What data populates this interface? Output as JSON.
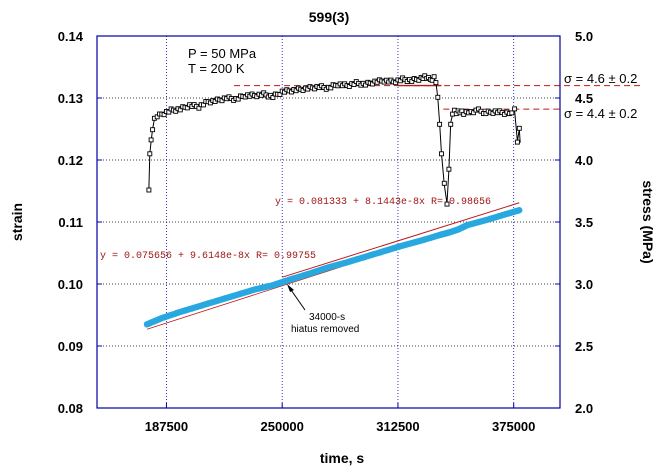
{
  "chart_data": {
    "type": "scatter",
    "title": "599(3)",
    "xlabel": "time, s",
    "ylabel_left": "strain",
    "ylabel_right": "stress (MPa)",
    "xlim": [
      150000,
      400000
    ],
    "ylim_left": [
      0.08,
      0.14
    ],
    "ylim_right": [
      2.0,
      5.0
    ],
    "x_ticks": [
      "187500",
      "250000",
      "312500",
      "375000"
    ],
    "x_tick_values": [
      187500,
      250000,
      312500,
      375000
    ],
    "y_left_ticks": [
      "0.08",
      "0.09",
      "0.10",
      "0.11",
      "0.12",
      "0.13",
      "0.14"
    ],
    "y_right_ticks": [
      "2.0",
      "2.5",
      "3.0",
      "3.5",
      "4.0",
      "4.5",
      "5.0"
    ],
    "grid": "dotted blue",
    "conditions": [
      "P = 50 MPa",
      "T = 200 K"
    ],
    "series": [
      {
        "axis": "right",
        "marker": "open-square",
        "color": "#000000",
        "x": [
          178000,
          178500,
          179200,
          180000,
          181000,
          182500,
          185000,
          190000,
          195000,
          200000,
          205000,
          210000,
          215000,
          220000,
          225000,
          230000,
          235000,
          240000,
          245000,
          250000,
          255000,
          260000,
          265000,
          270000,
          275000,
          280000,
          285000,
          290000,
          295000,
          300000,
          305000,
          310000,
          315000,
          320000,
          325000,
          328000,
          330000,
          332000,
          333000,
          334000,
          335000,
          336000,
          337500,
          339000,
          340000,
          341000,
          342000,
          343000,
          344000,
          345000,
          348000,
          352000,
          356000,
          360000,
          365000,
          370000,
          374000,
          375500,
          377000,
          378000,
          378500
        ],
        "y": [
          3.77,
          4.05,
          4.15,
          4.25,
          4.33,
          4.36,
          4.37,
          4.4,
          4.41,
          4.44,
          4.43,
          4.47,
          4.48,
          4.5,
          4.49,
          4.52,
          4.52,
          4.53,
          4.51,
          4.55,
          4.56,
          4.57,
          4.58,
          4.59,
          4.58,
          4.61,
          4.6,
          4.62,
          4.61,
          4.63,
          4.64,
          4.63,
          4.65,
          4.64,
          4.66,
          4.67,
          4.65,
          4.66,
          4.63,
          4.5,
          4.3,
          4.05,
          3.8,
          3.65,
          3.92,
          4.3,
          4.37,
          4.39,
          4.38,
          4.39,
          4.38,
          4.39,
          4.4,
          4.38,
          4.39,
          4.38,
          4.38,
          4.4,
          4.15,
          4.25,
          4.14
        ]
      },
      {
        "axis": "left",
        "marker": "filled-circle",
        "color": "#29a8e0",
        "x": [
          177000,
          185000,
          195000,
          205000,
          215000,
          225000,
          235000,
          245000,
          250000,
          255000,
          265000,
          275000,
          285000,
          295000,
          305000,
          315000,
          325000,
          335000,
          340000,
          345000,
          350000,
          360000,
          370000,
          378000
        ],
        "y": [
          0.0935,
          0.0945,
          0.0955,
          0.0964,
          0.0973,
          0.0982,
          0.0991,
          0.0998,
          0.1003,
          0.1008,
          0.1017,
          0.1027,
          0.1035,
          0.1044,
          0.1053,
          0.1062,
          0.107,
          0.1079,
          0.1083,
          0.1088,
          0.1095,
          0.1103,
          0.1112,
          0.1119
        ]
      }
    ],
    "fits": [
      {
        "label": "y = 0.075656 + 9.6148e-8x   R= 0.99755"
      },
      {
        "label": "y = 0.081333 + 8.1443e-8x   R= 0.98656"
      }
    ],
    "stress_levels": [
      {
        "label": "σ = 4.6 ± 0.2",
        "value": 4.6
      },
      {
        "label": "σ = 4.4 ± 0.2",
        "value": 4.4
      }
    ],
    "annotation": {
      "line1": "34000-s",
      "line2": "hiatus removed"
    }
  }
}
